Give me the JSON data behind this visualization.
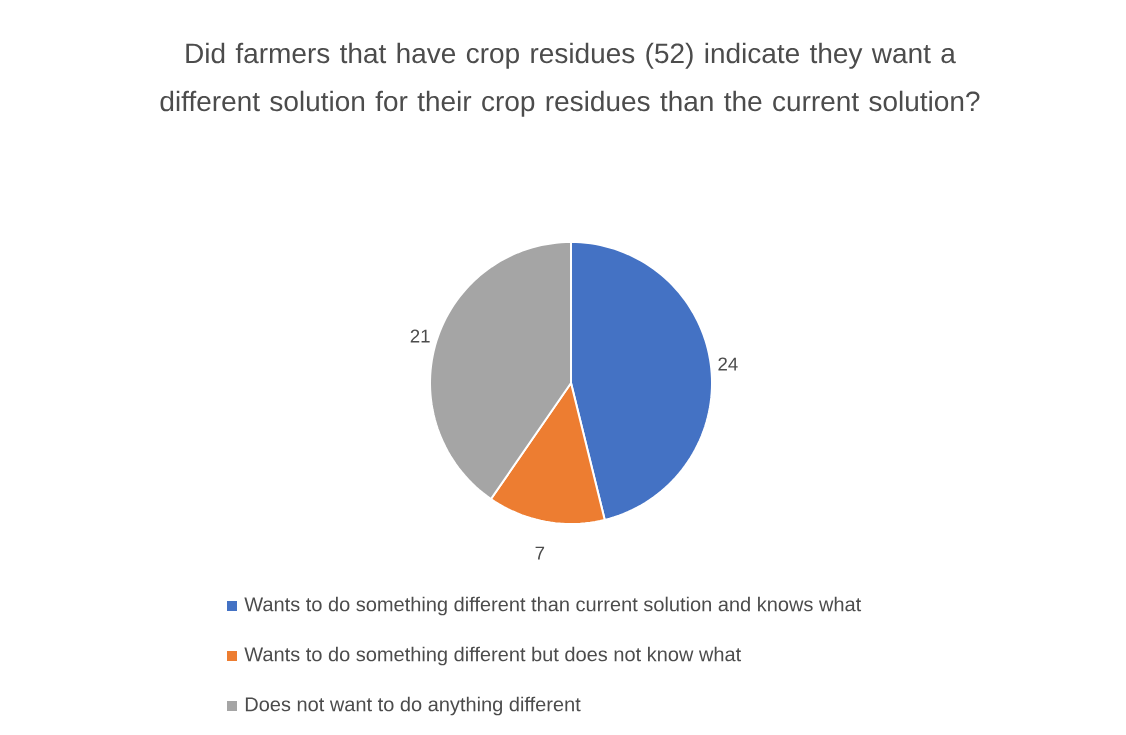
{
  "chart_data": {
    "type": "pie",
    "title": "Did farmers that have crop residues (52) indicate they want a different solution for their crop residues than the current solution?",
    "categories": [
      "Wants to do something different than current solution and knows what",
      "Wants to do something different but does not know what",
      "Does not want to do anything different"
    ],
    "values": [
      24,
      7,
      21
    ],
    "colors": [
      "#4472c4",
      "#ed7d31",
      "#a5a5a5"
    ],
    "data_labels": true,
    "legend": "bottom"
  }
}
